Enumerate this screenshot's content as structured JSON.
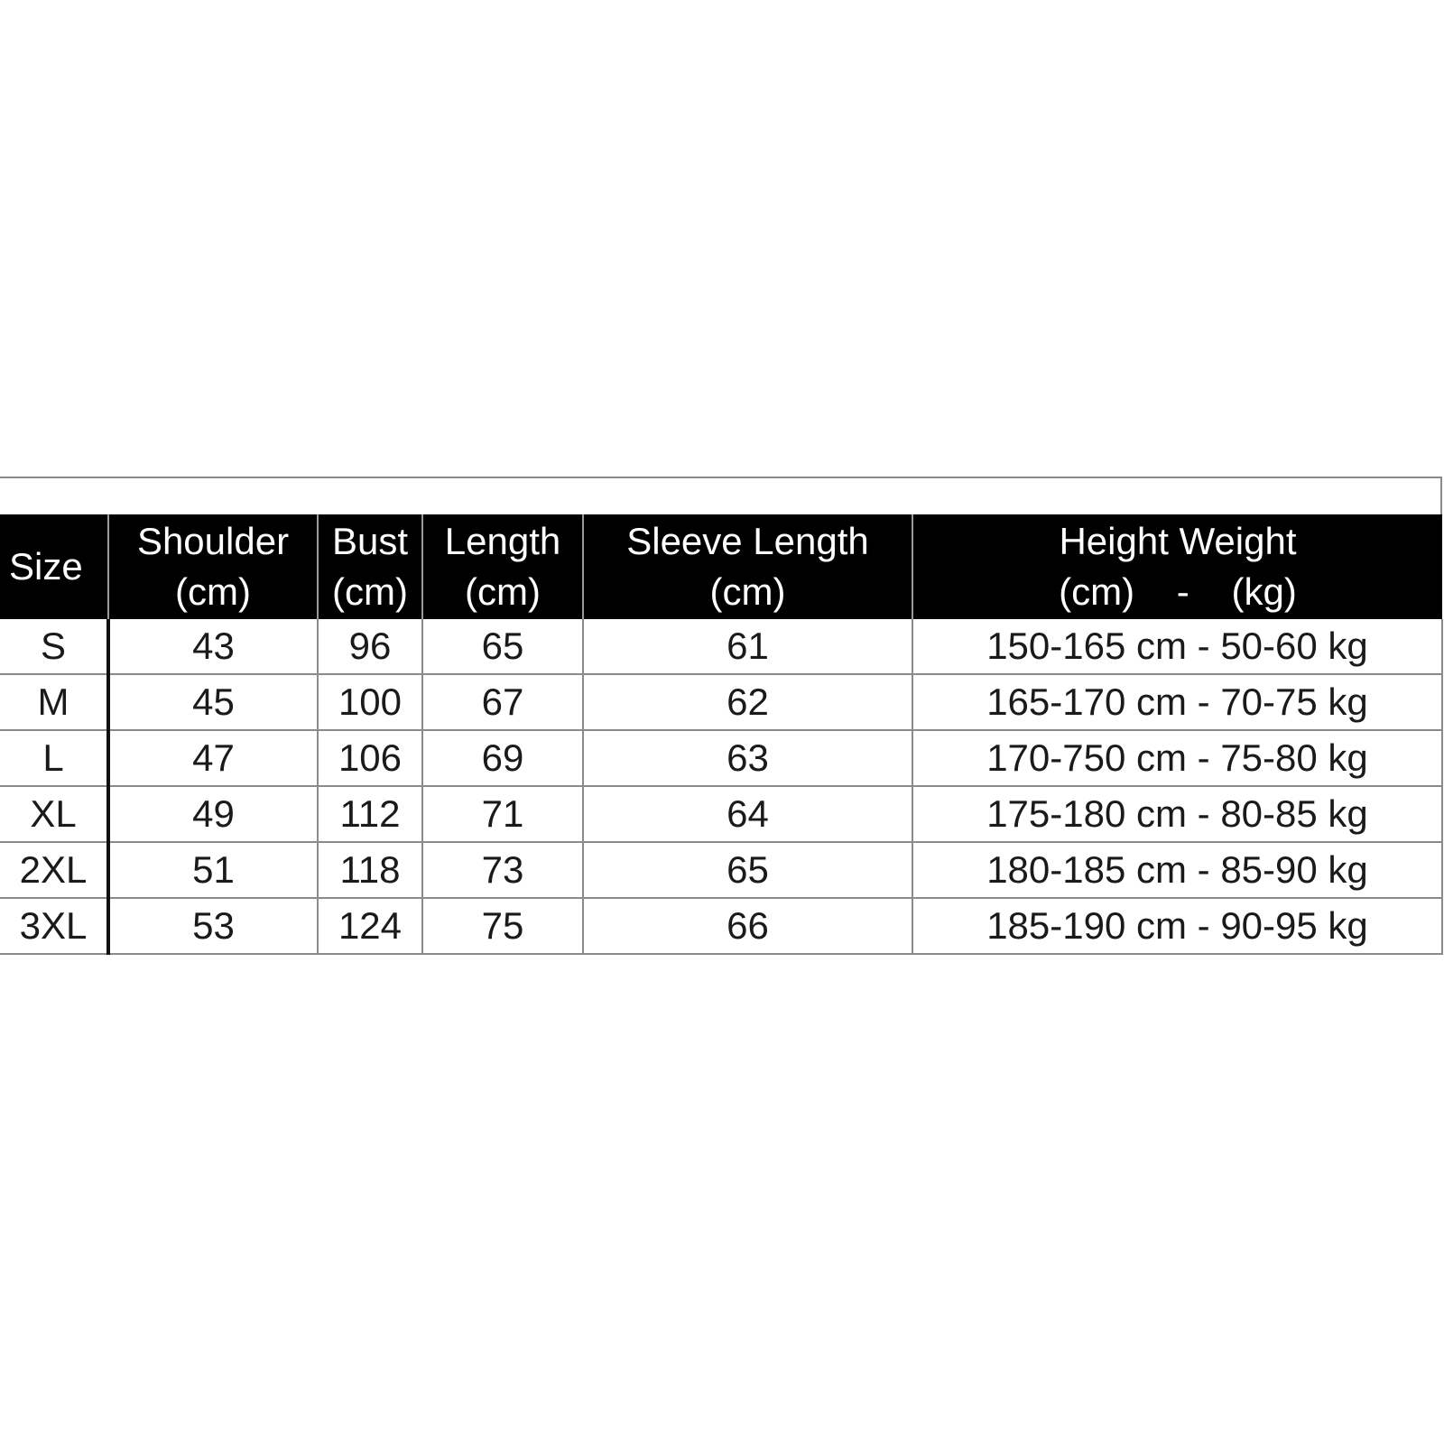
{
  "table": {
    "headers": [
      {
        "line1": "Size",
        "line2": ""
      },
      {
        "line1": "Shoulder",
        "line2": "(cm)"
      },
      {
        "line1": "Bust",
        "line2": "(cm)"
      },
      {
        "line1": "Length",
        "line2": "(cm)"
      },
      {
        "line1": "Sleeve Length",
        "line2": "(cm)"
      },
      {
        "line1": "Height Weight",
        "line2": "(cm)    -    (kg)"
      }
    ],
    "rows": [
      [
        "S",
        "43",
        "96",
        "65",
        "61",
        "150-165 cm - 50-60 kg"
      ],
      [
        "M",
        "45",
        "100",
        "67",
        "62",
        "165-170 cm - 70-75 kg"
      ],
      [
        "L",
        "47",
        "106",
        "69",
        "63",
        "170-750 cm - 75-80 kg"
      ],
      [
        "XL",
        "49",
        "112",
        "71",
        "64",
        "175-180 cm - 80-85 kg"
      ],
      [
        "2XL",
        "51",
        "118",
        "73",
        "65",
        "180-185 cm - 85-90 kg"
      ],
      [
        "3XL",
        "53",
        "124",
        "75",
        "66",
        "185-190 cm - 90-95 kg"
      ]
    ]
  }
}
